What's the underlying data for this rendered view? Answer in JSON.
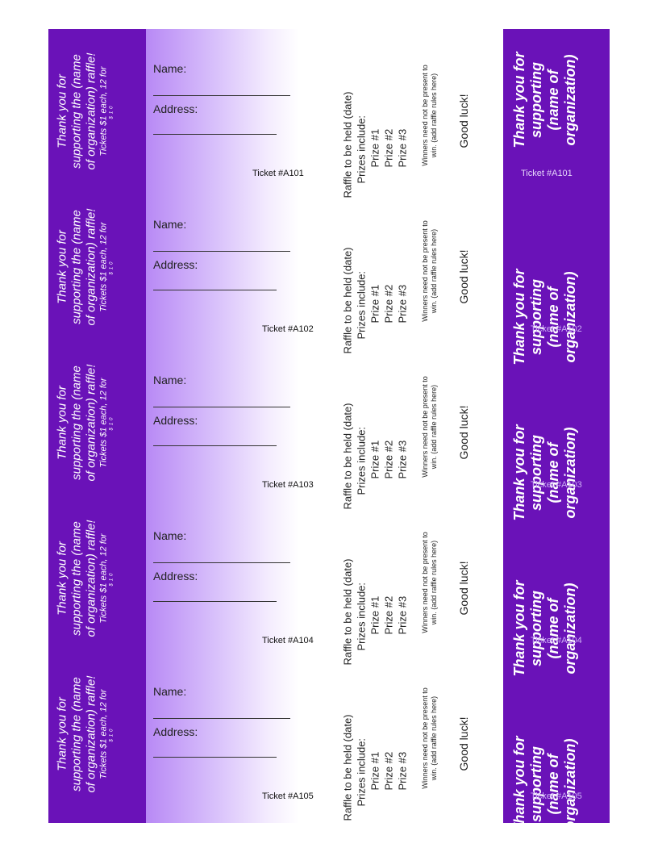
{
  "thanks_lines": [
    "Thank you for",
    "supporting the (name",
    "of organization) raffle!"
  ],
  "price_line": "Tickets $1 each, 12 for",
  "price_tail": "$10",
  "name_label": "Name:",
  "address_label": "Address:",
  "info": {
    "held": "Raffle to be held (date)",
    "prizes": "Prizes include:",
    "prize_list": [
      "Prize #1",
      "Prize #2",
      "Prize #3"
    ]
  },
  "rules_lines": [
    "Winners need not be present to",
    "win.  (add raffle rules here)"
  ],
  "good_luck": "Good luck!",
  "stub_lines": [
    "Thank you for",
    "supporting",
    "(name of",
    "organization)"
  ],
  "tickets": [
    "Ticket #A101",
    "Ticket #A102",
    "Ticket #A103",
    "Ticket #A104",
    "Ticket #A105"
  ],
  "colors": {
    "band": "#6a12b8",
    "fade_start": "#b889f5",
    "text_light": "#ffffff"
  }
}
